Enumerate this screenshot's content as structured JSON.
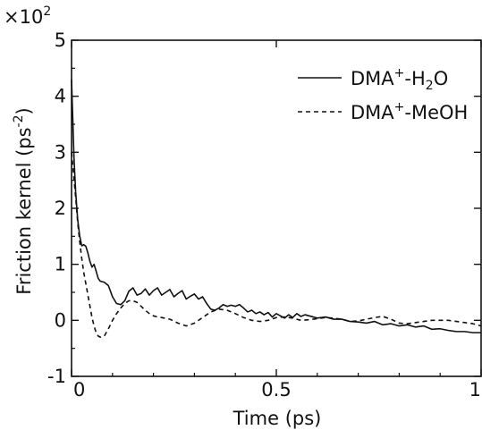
{
  "chart_data": {
    "type": "line",
    "xlabel": "Time  (ps)",
    "ylabel": "Friction kernel (ps",
    "ylabel_sup": "-2",
    "ylabel_close": ")",
    "y_multiplier_base": "×10",
    "y_multiplier_exp": "2",
    "xlim": [
      0,
      1
    ],
    "ylim": [
      -1,
      5
    ],
    "x_ticks": [
      0,
      0.5,
      1
    ],
    "x_tick_labels": [
      "0",
      "0.5",
      "1"
    ],
    "y_ticks": [
      -1,
      0,
      1,
      2,
      3,
      4,
      5
    ],
    "y_tick_labels": [
      "-1",
      "0",
      "1",
      "2",
      "3",
      "4",
      "5"
    ],
    "grid": false,
    "legend_position": "top-right",
    "series": [
      {
        "name": "DMA+-H2O",
        "legend": {
          "a": "DMA",
          "sup": "+",
          "b": "-H",
          "sub": "2",
          "c": "O"
        },
        "style": "solid",
        "x": [
          0,
          0.003,
          0.006,
          0.01,
          0.015,
          0.02,
          0.025,
          0.03,
          0.035,
          0.04,
          0.045,
          0.05,
          0.055,
          0.06,
          0.065,
          0.07,
          0.08,
          0.09,
          0.1,
          0.11,
          0.12,
          0.13,
          0.14,
          0.15,
          0.16,
          0.17,
          0.18,
          0.19,
          0.2,
          0.21,
          0.22,
          0.23,
          0.24,
          0.25,
          0.26,
          0.27,
          0.28,
          0.29,
          0.3,
          0.31,
          0.32,
          0.33,
          0.34,
          0.35,
          0.36,
          0.37,
          0.38,
          0.39,
          0.4,
          0.41,
          0.42,
          0.43,
          0.44,
          0.45,
          0.46,
          0.47,
          0.48,
          0.49,
          0.5,
          0.51,
          0.52,
          0.53,
          0.54,
          0.55,
          0.56,
          0.57,
          0.58,
          0.6,
          0.62,
          0.64,
          0.66,
          0.68,
          0.7,
          0.72,
          0.74,
          0.76,
          0.78,
          0.8,
          0.82,
          0.84,
          0.86,
          0.88,
          0.9,
          0.92,
          0.94,
          0.96,
          0.98,
          1.0
        ],
        "y": [
          4.3,
          3.6,
          2.9,
          2.3,
          1.8,
          1.5,
          1.33,
          1.35,
          1.32,
          1.2,
          1.05,
          0.95,
          1.0,
          0.88,
          0.75,
          0.7,
          0.68,
          0.62,
          0.42,
          0.3,
          0.28,
          0.35,
          0.52,
          0.58,
          0.45,
          0.48,
          0.56,
          0.45,
          0.53,
          0.58,
          0.45,
          0.5,
          0.55,
          0.42,
          0.48,
          0.53,
          0.38,
          0.43,
          0.47,
          0.38,
          0.42,
          0.3,
          0.2,
          0.18,
          0.22,
          0.28,
          0.25,
          0.27,
          0.25,
          0.28,
          0.22,
          0.15,
          0.18,
          0.12,
          0.15,
          0.1,
          0.14,
          0.06,
          0.12,
          0.08,
          0.04,
          0.1,
          0.05,
          0.12,
          0.07,
          0.1,
          0.08,
          0.04,
          0.06,
          0.02,
          0.02,
          -0.02,
          -0.03,
          -0.05,
          -0.02,
          -0.08,
          -0.06,
          -0.1,
          -0.08,
          -0.12,
          -0.1,
          -0.16,
          -0.15,
          -0.18,
          -0.2,
          -0.2,
          -0.22,
          -0.22
        ]
      },
      {
        "name": "DMA+-MeOH",
        "legend": {
          "a": "DMA",
          "sup": "+",
          "b": "-MeOH",
          "sub": "",
          "c": ""
        },
        "style": "dashed",
        "x": [
          0,
          0.005,
          0.01,
          0.015,
          0.02,
          0.025,
          0.03,
          0.035,
          0.04,
          0.045,
          0.05,
          0.055,
          0.06,
          0.065,
          0.07,
          0.075,
          0.08,
          0.09,
          0.1,
          0.11,
          0.12,
          0.13,
          0.14,
          0.15,
          0.16,
          0.17,
          0.18,
          0.19,
          0.2,
          0.21,
          0.22,
          0.24,
          0.26,
          0.28,
          0.3,
          0.32,
          0.34,
          0.36,
          0.38,
          0.4,
          0.42,
          0.44,
          0.46,
          0.48,
          0.5,
          0.52,
          0.54,
          0.56,
          0.58,
          0.6,
          0.62,
          0.64,
          0.66,
          0.68,
          0.7,
          0.72,
          0.74,
          0.76,
          0.78,
          0.8,
          0.82,
          0.84,
          0.86,
          0.88,
          0.9,
          0.92,
          0.94,
          0.96,
          0.98,
          1.0
        ],
        "y": [
          3.0,
          2.6,
          2.2,
          1.75,
          1.4,
          1.1,
          0.85,
          0.65,
          0.45,
          0.25,
          0.05,
          -0.1,
          -0.22,
          -0.28,
          -0.3,
          -0.3,
          -0.28,
          -0.15,
          0.0,
          0.12,
          0.22,
          0.3,
          0.35,
          0.35,
          0.32,
          0.25,
          0.18,
          0.12,
          0.08,
          0.06,
          0.05,
          0.02,
          -0.05,
          -0.1,
          -0.05,
          0.05,
          0.15,
          0.2,
          0.18,
          0.12,
          0.05,
          0.0,
          -0.02,
          0.0,
          0.05,
          0.06,
          0.04,
          0.0,
          0.01,
          0.03,
          0.05,
          0.04,
          0.02,
          -0.02,
          -0.01,
          0.02,
          0.05,
          0.07,
          0.02,
          -0.05,
          -0.06,
          -0.04,
          -0.02,
          0.0,
          0.0,
          0.0,
          -0.02,
          -0.04,
          -0.06,
          -0.1
        ]
      }
    ]
  }
}
